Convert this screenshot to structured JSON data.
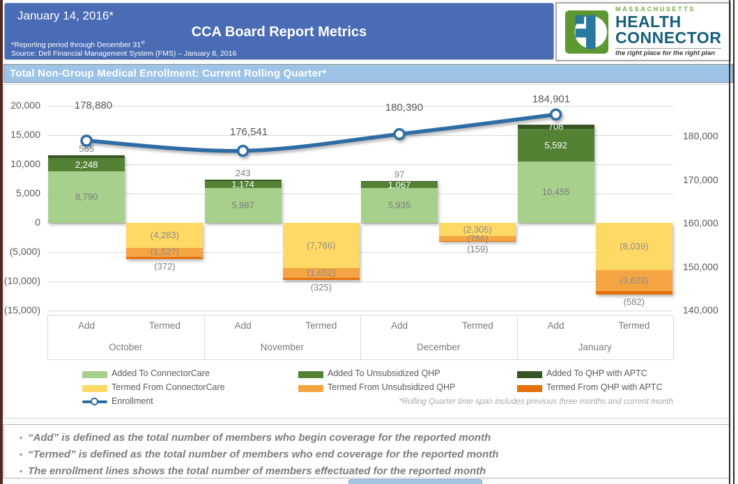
{
  "header": {
    "date": "January 14, 2016*",
    "title": "CCA Board Report Metrics",
    "reporting_note": "*Reporting period through December 31",
    "reporting_note_sup": "st",
    "source_note": "Source: Dell Financial Management System (FMS) – January 8, 2016"
  },
  "logo": {
    "state": "MASSACHUSETTS",
    "line1": "HEALTH",
    "line2": "CONNECTOR",
    "tagline": "the right place for the right plan",
    "green": "#76a83f",
    "blue": "#155e7d"
  },
  "section": {
    "title": "Total Non-Group Medical Enrollment: Current Rolling Quarter*"
  },
  "chart_data": {
    "type": "combo-stacked-bar-line",
    "months": [
      "October",
      "November",
      "December",
      "January"
    ],
    "bar_categories": [
      "Add",
      "Termed"
    ],
    "left_axis": {
      "labels": [
        "20,000",
        "15,000",
        "10,000",
        "5,000",
        "0",
        "(5,000)",
        "(10,000)",
        "(15,000)"
      ],
      "values": [
        20000,
        15000,
        10000,
        5000,
        0,
        -5000,
        -10000,
        -15000
      ]
    },
    "right_axis": {
      "labels": [
        "180,000",
        "170,000",
        "160,000",
        "150,000",
        "140,000"
      ],
      "values": [
        180000,
        170000,
        160000,
        150000,
        140000
      ]
    },
    "add_series": [
      {
        "name": "Added To ConnectorCare",
        "color": "#a8d08d",
        "values": [
          8790,
          5987,
          5935,
          10455
        ],
        "labels": [
          "8,790",
          "5,987",
          "5,935",
          "10,455"
        ],
        "label_pos": [
          "inside",
          "inside",
          "inside",
          "inside"
        ],
        "label_color": "#7a7a7a"
      },
      {
        "name": "Added To Unsubsidized QHP",
        "color": "#548235",
        "values": [
          2248,
          1174,
          1067,
          5592
        ],
        "labels": [
          "2,248",
          "1,174",
          "1,067",
          "5,592"
        ],
        "label_pos": [
          "inside",
          "inside",
          "inside",
          "inside"
        ],
        "label_color": "#ffffff"
      },
      {
        "name": "Added To QHP with APTC",
        "color": "#375623",
        "values": [
          565,
          243,
          97,
          708
        ],
        "labels": [
          "565",
          "243",
          "97",
          "708"
        ],
        "label_pos": [
          "above",
          "above",
          "above",
          "inside"
        ],
        "label_color": "#ffffff"
      }
    ],
    "termed_series": [
      {
        "name": "Termed From ConnectorCare",
        "color": "#ffd965",
        "values": [
          4283,
          7766,
          2305,
          8039
        ],
        "labels": [
          "(4,283)",
          "(7,766)",
          "(2,305)",
          "(8,039)"
        ],
        "label_pos": [
          "inside",
          "inside",
          "inside",
          "inside"
        ],
        "label_color": "#8c8c8c"
      },
      {
        "name": "Termed From Unsubsidized QHP",
        "color": "#f4a442",
        "values": [
          1527,
          1652,
          786,
          3623
        ],
        "labels": [
          "(1,527)",
          "(1,652)",
          "(786)",
          "(3,623)"
        ],
        "label_pos": [
          "inside",
          "inside",
          "inside",
          "inside"
        ],
        "label_color": "#8c8c8c"
      },
      {
        "name": "Termed From QHP with APTC",
        "color": "#e6700a",
        "values": [
          372,
          325,
          159,
          582
        ],
        "labels": [
          "(372)",
          "(325)",
          "(159)",
          "(582)"
        ],
        "label_pos": [
          "below",
          "below",
          "below",
          "below"
        ],
        "label_color": "#808080"
      }
    ],
    "line_series": {
      "name": "Enrollment",
      "color": "#2e6ca4",
      "values": [
        178880,
        176541,
        180390,
        184901
      ],
      "labels": [
        "178,880",
        "176,541",
        "180,390",
        "184,901"
      ]
    },
    "footnote": "*Rolling Quarter time span includes previous three months and current month"
  },
  "notes": {
    "bullet": "•",
    "items": [
      "“Add” is defined as the total number of members who begin coverage for the reported month",
      "“Termed” is defined as the total number of members who end coverage for the reported month",
      "The enrollment lines shows the total number of members effectuated for the reported month"
    ]
  }
}
